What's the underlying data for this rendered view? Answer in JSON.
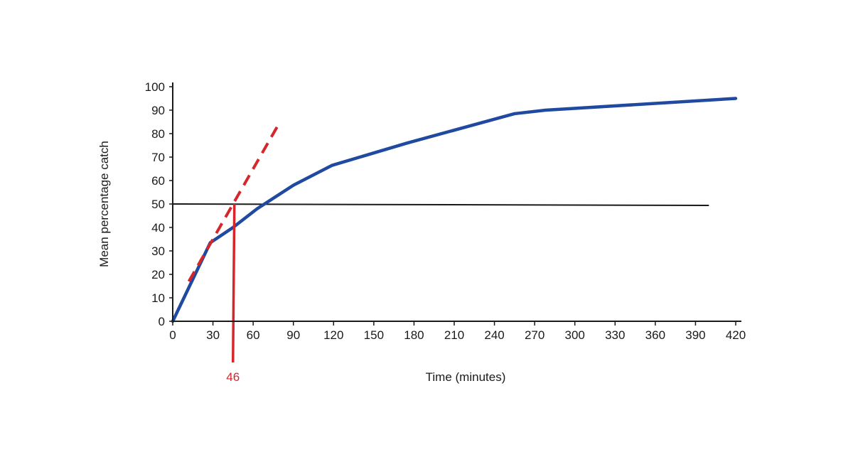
{
  "chart_data": {
    "type": "line",
    "title": "",
    "xlabel": "Time (minutes)",
    "ylabel": "Mean percentage catch",
    "xlim": [
      0,
      420
    ],
    "ylim": [
      0,
      100
    ],
    "x_ticks": [
      0,
      30,
      60,
      90,
      120,
      150,
      180,
      210,
      240,
      270,
      300,
      330,
      360,
      390,
      420
    ],
    "y_ticks": [
      0,
      10,
      20,
      30,
      40,
      50,
      60,
      70,
      80,
      90,
      100
    ],
    "grid": false,
    "legend": "none",
    "series": [
      {
        "color": "#1f4aa0",
        "style": "solid",
        "points": [
          [
            0,
            0
          ],
          [
            28,
            33.5
          ],
          [
            45,
            40
          ],
          [
            63,
            48
          ],
          [
            90,
            58
          ],
          [
            119,
            66.5
          ],
          [
            175,
            76
          ],
          [
            255,
            88.5
          ],
          [
            278,
            90
          ],
          [
            420,
            95
          ]
        ]
      }
    ],
    "tangent_line": {
      "color": "#d7262b",
      "style": "dashed",
      "points": [
        [
          12,
          17
        ],
        [
          80,
          85
        ]
      ]
    },
    "reference_line": {
      "color": "#1a1a1a",
      "style": "solid",
      "y": 50,
      "x_range": [
        0,
        400
      ]
    },
    "marker": {
      "color": "#d7262b",
      "x": 46,
      "y": 50,
      "label": "46"
    }
  }
}
